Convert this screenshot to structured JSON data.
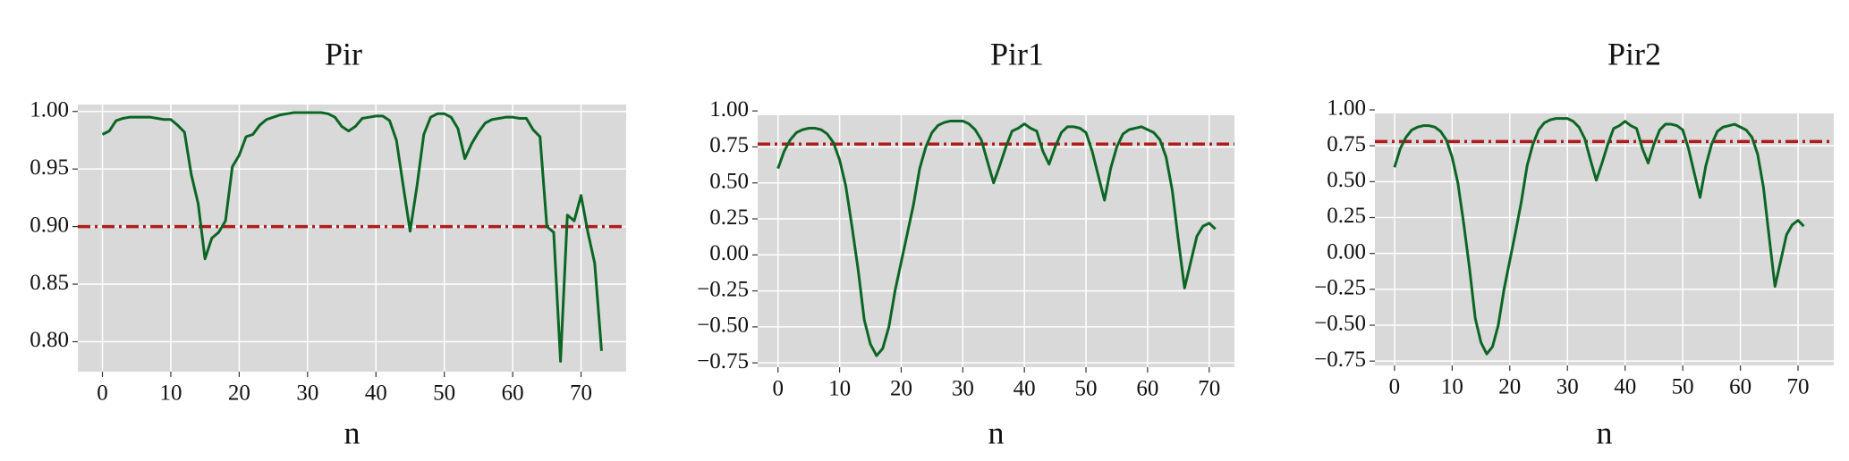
{
  "chart_data": [
    {
      "type": "line",
      "title": "Pir",
      "xlabel": "n",
      "x": [
        0,
        1,
        2,
        3,
        4,
        5,
        6,
        7,
        8,
        9,
        10,
        11,
        12,
        13,
        14,
        15,
        16,
        17,
        18,
        19,
        20,
        21,
        22,
        23,
        24,
        25,
        26,
        27,
        28,
        29,
        30,
        31,
        32,
        33,
        34,
        35,
        36,
        37,
        38,
        39,
        40,
        41,
        42,
        43,
        44,
        45,
        46,
        47,
        48,
        49,
        50,
        51,
        52,
        53,
        54,
        55,
        56,
        57,
        58,
        59,
        60,
        61,
        62,
        63,
        64,
        65,
        66,
        67,
        68,
        69,
        70,
        71,
        72,
        73
      ],
      "series": [
        {
          "color": "#0b6623",
          "values": [
            0.98,
            0.983,
            0.992,
            0.994,
            0.995,
            0.995,
            0.995,
            0.995,
            0.994,
            0.993,
            0.993,
            0.988,
            0.982,
            0.945,
            0.92,
            0.872,
            0.89,
            0.895,
            0.905,
            0.952,
            0.962,
            0.978,
            0.98,
            0.988,
            0.993,
            0.995,
            0.997,
            0.998,
            0.999,
            0.999,
            0.999,
            0.999,
            0.999,
            0.998,
            0.995,
            0.987,
            0.983,
            0.987,
            0.994,
            0.995,
            0.996,
            0.996,
            0.992,
            0.975,
            0.935,
            0.896,
            0.935,
            0.98,
            0.995,
            0.998,
            0.998,
            0.995,
            0.985,
            0.959,
            0.972,
            0.982,
            0.99,
            0.993,
            0.994,
            0.995,
            0.995,
            0.994,
            0.994,
            0.984,
            0.978,
            0.9,
            0.895,
            0.783,
            0.91,
            0.905,
            0.927,
            0.895,
            0.868,
            0.792
          ]
        }
      ],
      "hlines": [
        {
          "value": 0.9,
          "color": "#b01c1c"
        }
      ],
      "xlim": [
        -3.6,
        76.6
      ],
      "ylim": [
        0.774,
        1.006
      ],
      "xticks": [
        0,
        10,
        20,
        30,
        40,
        50,
        60,
        70
      ],
      "yticks": [
        {
          "value": 0.8,
          "label": "0.80"
        },
        {
          "value": 0.85,
          "label": "0.85"
        },
        {
          "value": 0.9,
          "label": "0.90"
        },
        {
          "value": 0.95,
          "label": "0.95"
        },
        {
          "value": 1,
          "label": "1.00"
        }
      ],
      "grid": true
    },
    {
      "type": "line",
      "title": "Pir1",
      "xlabel": "n",
      "x": [
        0,
        1,
        2,
        3,
        4,
        5,
        6,
        7,
        8,
        9,
        10,
        11,
        12,
        13,
        14,
        15,
        16,
        17,
        18,
        19,
        20,
        21,
        22,
        23,
        24,
        25,
        26,
        27,
        28,
        29,
        30,
        31,
        32,
        33,
        34,
        35,
        36,
        37,
        38,
        39,
        40,
        41,
        42,
        43,
        44,
        45,
        46,
        47,
        48,
        49,
        50,
        51,
        52,
        53,
        54,
        55,
        56,
        57,
        58,
        59,
        60,
        61,
        62,
        63,
        64,
        65,
        66,
        67,
        68,
        69,
        70,
        71
      ],
      "series": [
        {
          "color": "#0b6623",
          "values": [
            0.6,
            0.72,
            0.8,
            0.85,
            0.87,
            0.88,
            0.88,
            0.87,
            0.84,
            0.78,
            0.66,
            0.48,
            0.2,
            -0.1,
            -0.45,
            -0.62,
            -0.7,
            -0.65,
            -0.5,
            -0.25,
            -0.05,
            0.15,
            0.35,
            0.6,
            0.75,
            0.85,
            0.9,
            0.92,
            0.93,
            0.93,
            0.93,
            0.91,
            0.87,
            0.8,
            0.65,
            0.5,
            0.62,
            0.75,
            0.86,
            0.88,
            0.91,
            0.88,
            0.86,
            0.72,
            0.63,
            0.75,
            0.85,
            0.89,
            0.89,
            0.88,
            0.85,
            0.72,
            0.55,
            0.38,
            0.6,
            0.75,
            0.84,
            0.87,
            0.88,
            0.89,
            0.87,
            0.85,
            0.8,
            0.68,
            0.45,
            0.1,
            -0.23,
            -0.05,
            0.13,
            0.2,
            0.22,
            0.18
          ]
        }
      ],
      "hlines": [
        {
          "value": 0.77,
          "color": "#b01c1c"
        }
      ],
      "xlim": [
        -3.3,
        74.1
      ],
      "ylim": [
        -0.78,
        0.97
      ],
      "xticks": [
        0,
        10,
        20,
        30,
        40,
        50,
        60,
        70
      ],
      "yticks": [
        {
          "value": -0.75,
          "label": "−0.75"
        },
        {
          "value": -0.5,
          "label": "−0.50"
        },
        {
          "value": -0.25,
          "label": "−0.25"
        },
        {
          "value": 0,
          "label": "0.00"
        },
        {
          "value": 0.25,
          "label": "0.25"
        },
        {
          "value": 0.5,
          "label": "0.50"
        },
        {
          "value": 0.75,
          "label": "0.75"
        },
        {
          "value": 1,
          "label": "1.00"
        }
      ],
      "grid": true
    },
    {
      "type": "line",
      "title": "Pir2",
      "xlabel": "n",
      "x": [
        0,
        1,
        2,
        3,
        4,
        5,
        6,
        7,
        8,
        9,
        10,
        11,
        12,
        13,
        14,
        15,
        16,
        17,
        18,
        19,
        20,
        21,
        22,
        23,
        24,
        25,
        26,
        27,
        28,
        29,
        30,
        31,
        32,
        33,
        34,
        35,
        36,
        37,
        38,
        39,
        40,
        41,
        42,
        43,
        44,
        45,
        46,
        47,
        48,
        49,
        50,
        51,
        52,
        53,
        54,
        55,
        56,
        57,
        58,
        59,
        60,
        61,
        62,
        63,
        64,
        65,
        66,
        67,
        68,
        69,
        70,
        71
      ],
      "series": [
        {
          "color": "#0b6623",
          "values": [
            0.6,
            0.73,
            0.81,
            0.86,
            0.88,
            0.89,
            0.89,
            0.88,
            0.85,
            0.79,
            0.67,
            0.49,
            0.21,
            -0.1,
            -0.45,
            -0.62,
            -0.7,
            -0.65,
            -0.5,
            -0.25,
            -0.05,
            0.15,
            0.36,
            0.61,
            0.76,
            0.86,
            0.91,
            0.93,
            0.94,
            0.94,
            0.94,
            0.92,
            0.88,
            0.8,
            0.65,
            0.51,
            0.63,
            0.76,
            0.87,
            0.89,
            0.92,
            0.89,
            0.87,
            0.73,
            0.63,
            0.76,
            0.86,
            0.9,
            0.9,
            0.89,
            0.86,
            0.73,
            0.56,
            0.39,
            0.61,
            0.76,
            0.85,
            0.88,
            0.89,
            0.9,
            0.88,
            0.86,
            0.81,
            0.69,
            0.46,
            0.11,
            -0.23,
            -0.05,
            0.13,
            0.2,
            0.23,
            0.19
          ]
        }
      ],
      "hlines": [
        {
          "value": 0.78,
          "color": "#b01c1c"
        }
      ],
      "xlim": [
        -3.4,
        76.2
      ],
      "ylim": [
        -0.78,
        0.975
      ],
      "xticks": [
        0,
        10,
        20,
        30,
        40,
        50,
        60,
        70
      ],
      "yticks": [
        {
          "value": -0.75,
          "label": "−0.75"
        },
        {
          "value": -0.5,
          "label": "−0.50"
        },
        {
          "value": -0.25,
          "label": "−0.25"
        },
        {
          "value": 0,
          "label": "0.00"
        },
        {
          "value": 0.25,
          "label": "0.25"
        },
        {
          "value": 0.5,
          "label": "0.50"
        },
        {
          "value": 0.75,
          "label": "0.75"
        },
        {
          "value": 1,
          "label": "1.00"
        }
      ],
      "grid": true
    }
  ]
}
